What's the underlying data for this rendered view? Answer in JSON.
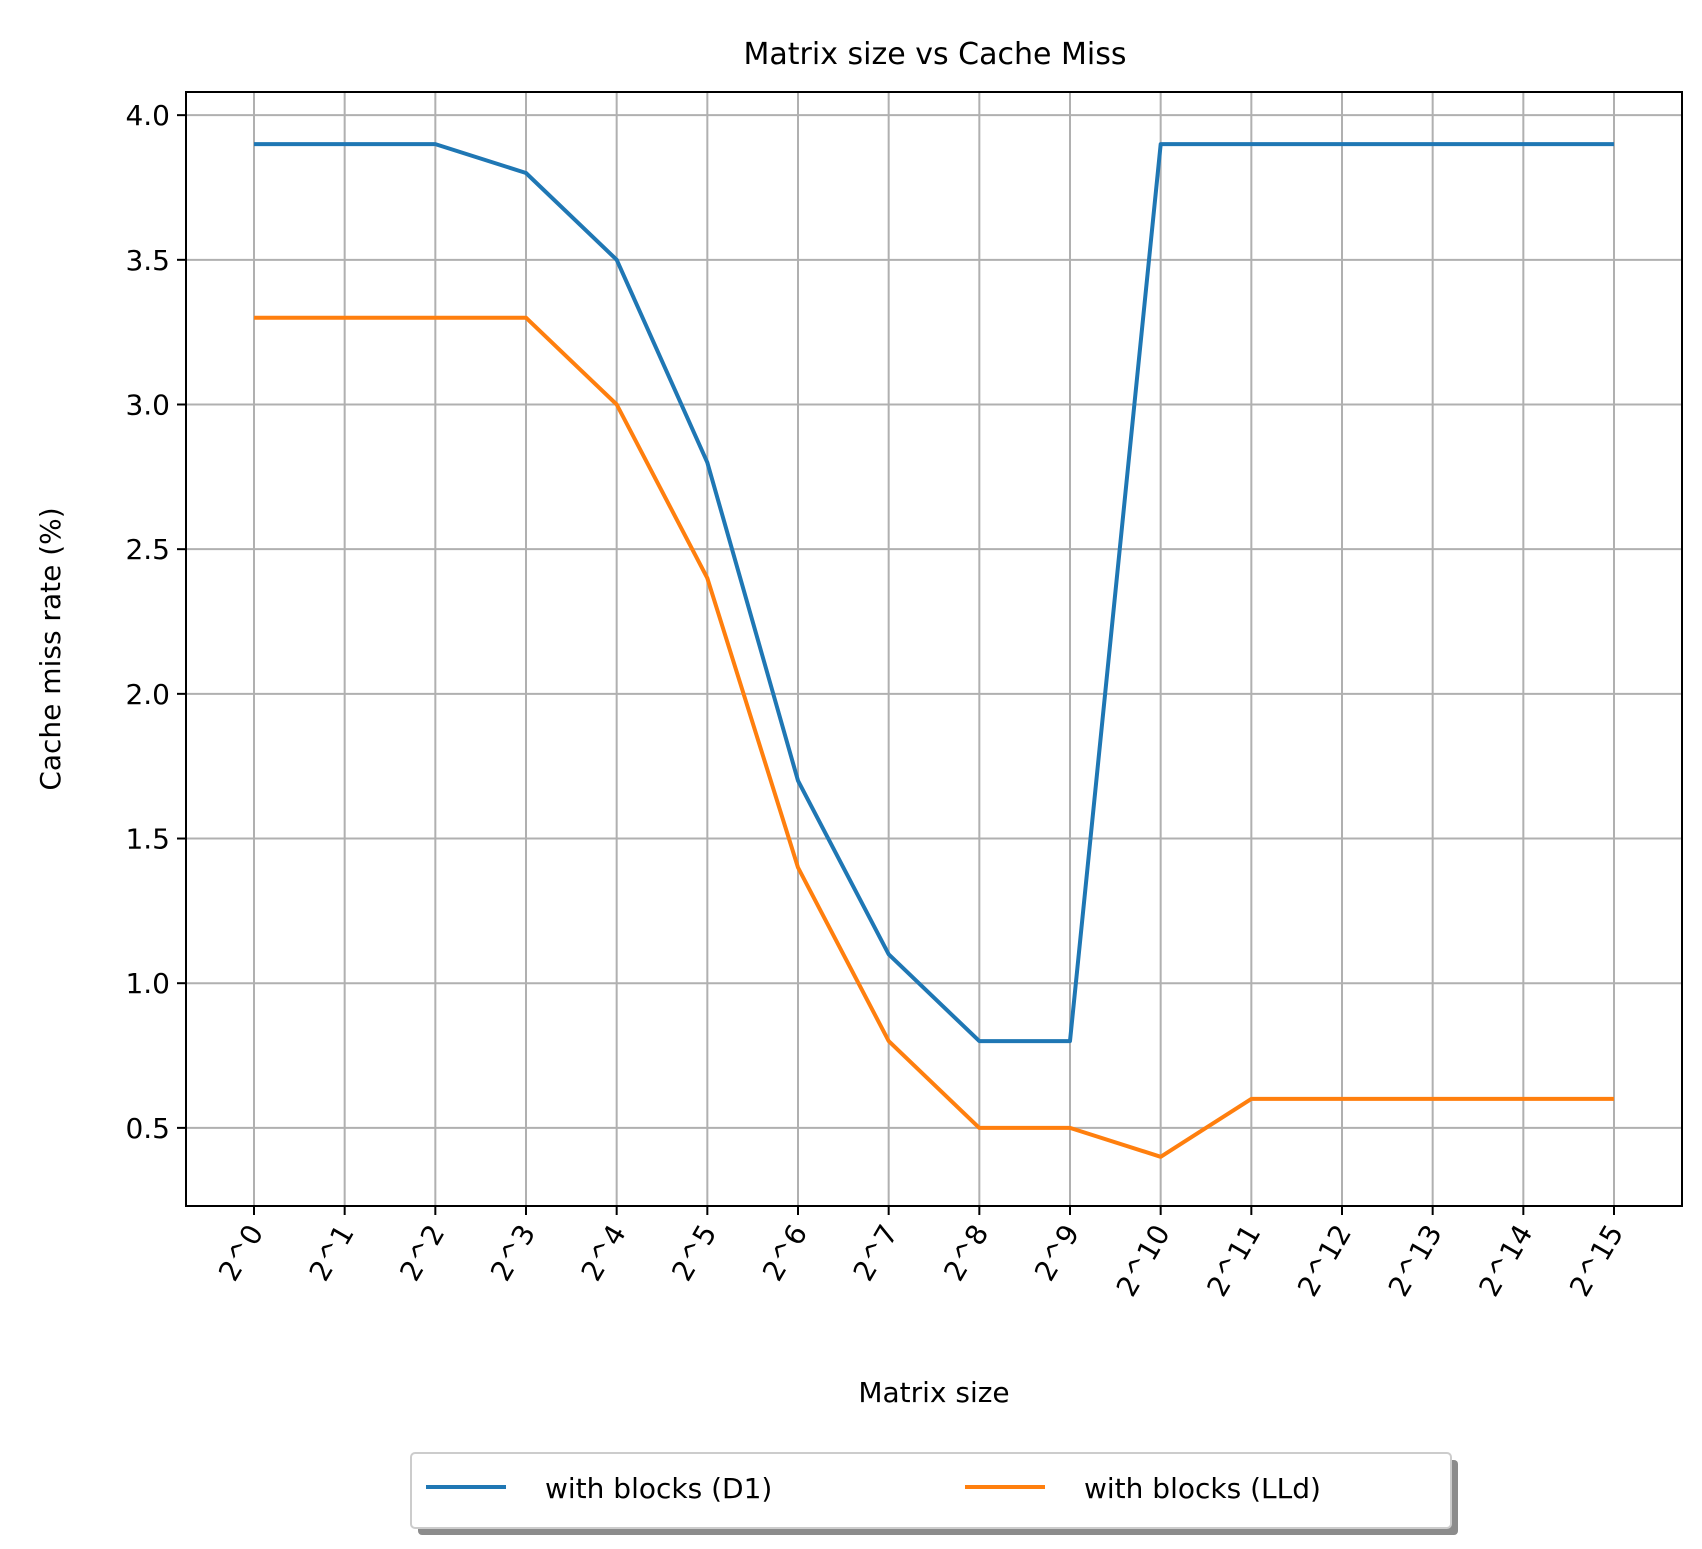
{
  "chart_data": {
    "type": "line",
    "title": "Matrix size vs Cache Miss",
    "xlabel": "Matrix size",
    "ylabel": "Cache miss rate (%)",
    "x": [
      "2^0",
      "2^1",
      "2^2",
      "2^3",
      "2^4",
      "2^5",
      "2^6",
      "2^7",
      "2^8",
      "2^9",
      "2^10",
      "2^11",
      "2^12",
      "2^13",
      "2^14",
      "2^15"
    ],
    "ylim": [
      0.23,
      4.08
    ],
    "yticks": [
      0.5,
      1.0,
      1.5,
      2.0,
      2.5,
      3.0,
      3.5,
      4.0
    ],
    "ytick_labels": [
      "0.5",
      "1.0",
      "1.5",
      "2.0",
      "2.5",
      "3.0",
      "3.5",
      "4.0"
    ],
    "grid": true,
    "legend_position": "bottom-center",
    "series": [
      {
        "name": "with blocks (D1)",
        "color": "#1f77b4",
        "values": [
          3.9,
          3.9,
          3.9,
          3.8,
          3.5,
          2.8,
          1.7,
          1.1,
          0.8,
          0.8,
          3.9,
          3.9,
          3.9,
          3.9,
          3.9,
          3.9
        ]
      },
      {
        "name": "with blocks (LLd)",
        "color": "#ff7f0e",
        "values": [
          3.3,
          3.3,
          3.3,
          3.3,
          3.0,
          2.4,
          1.4,
          0.8,
          0.5,
          0.5,
          0.4,
          0.6,
          0.6,
          0.6,
          0.6,
          0.6
        ]
      }
    ]
  }
}
